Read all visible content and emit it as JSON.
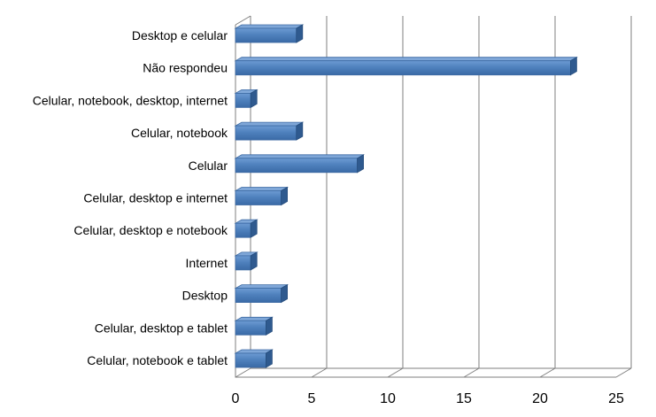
{
  "chart_data": {
    "type": "bar",
    "orientation": "horizontal",
    "categories": [
      "Desktop e celular",
      "Não respondeu",
      "Celular, notebook, desktop, internet",
      "Celular, notebook",
      "Celular",
      "Celular, desktop e internet",
      "Celular, desktop e notebook",
      "Internet",
      "Desktop",
      "Celular, desktop e tablet",
      "Celular, notebook e tablet"
    ],
    "values": [
      4,
      22,
      1,
      4,
      8,
      3,
      1,
      1,
      3,
      2,
      2
    ],
    "xticks": [
      "0",
      "5",
      "10",
      "15",
      "20",
      "25"
    ],
    "xlim": [
      0,
      25
    ],
    "grid": true,
    "legend": "none",
    "bar_color": "#4f81bd",
    "title": "",
    "xlabel": "",
    "ylabel": ""
  }
}
